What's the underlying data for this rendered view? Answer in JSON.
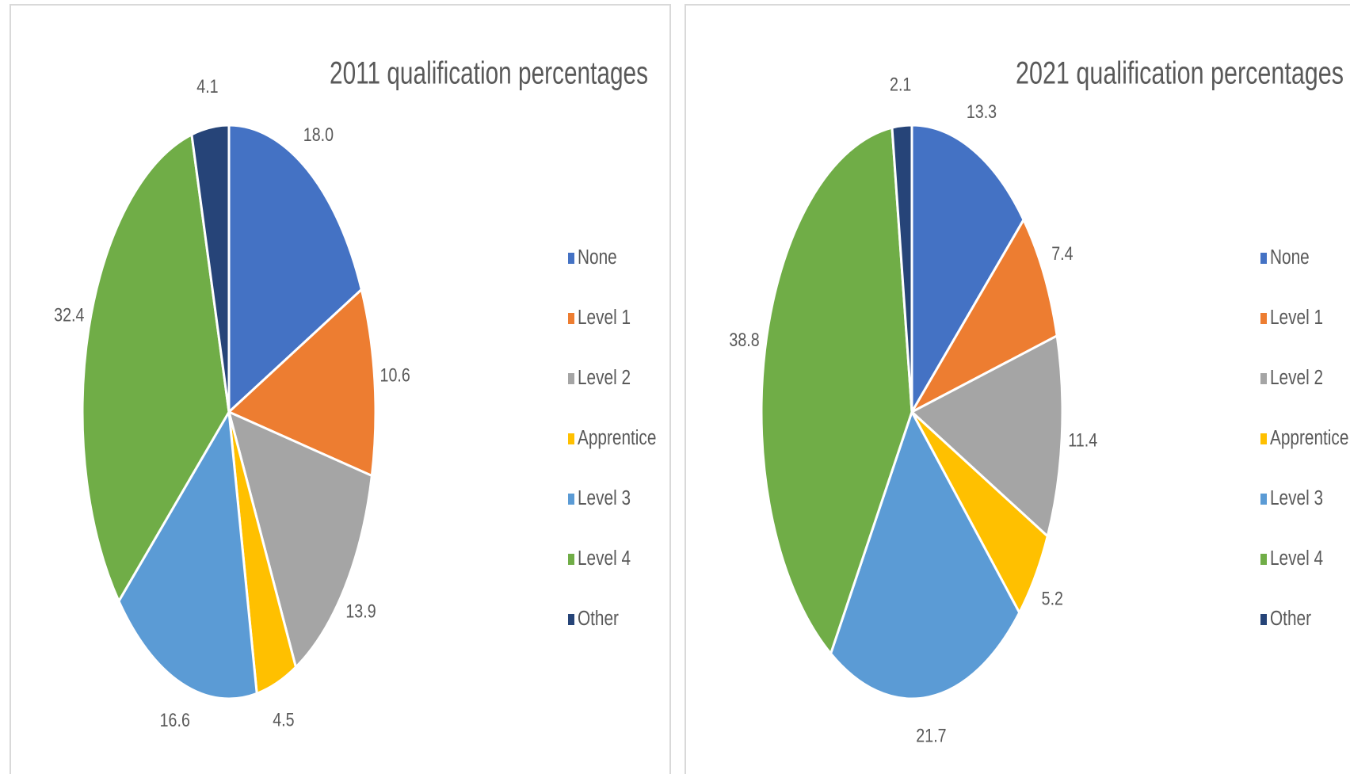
{
  "chart_data": [
    {
      "type": "pie",
      "title": "2011 qualification percentages",
      "categories": [
        "None",
        "Level 1",
        "Level 2",
        "Apprentice",
        "Level 3",
        "Level 4",
        "Other"
      ],
      "values": [
        18.0,
        10.6,
        13.9,
        4.5,
        16.6,
        32.4,
        4.1
      ],
      "value_labels": [
        "18.0",
        "10.6",
        "13.9",
        "4.5",
        "16.6",
        "32.4",
        "4.1"
      ],
      "colors": [
        "#4472c4",
        "#ed7d31",
        "#a5a5a5",
        "#ffc000",
        "#5b9bd5",
        "#70ad47",
        "#264478"
      ]
    },
    {
      "type": "pie",
      "title": "2021 qualification percentages",
      "categories": [
        "None",
        "Level 1",
        "Level 2",
        "Apprentice",
        "Level 3",
        "Level 4",
        "Other"
      ],
      "values": [
        13.3,
        7.4,
        11.4,
        5.2,
        21.7,
        38.8,
        2.1
      ],
      "value_labels": [
        "13.3",
        "7.4",
        "11.4",
        "5.2",
        "21.7",
        "38.8",
        "2.1"
      ],
      "colors": [
        "#4472c4",
        "#ed7d31",
        "#a5a5a5",
        "#ffc000",
        "#5b9bd5",
        "#70ad47",
        "#264478"
      ]
    }
  ]
}
